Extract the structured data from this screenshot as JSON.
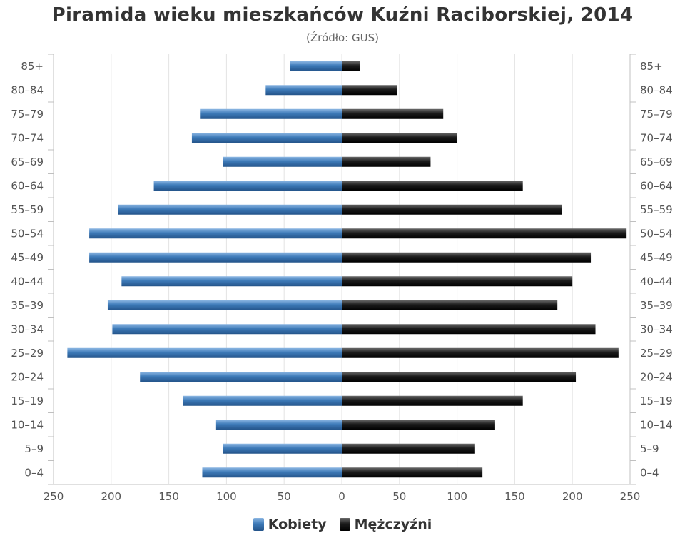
{
  "chart_data": {
    "type": "bar",
    "orientation": "horizontal-population-pyramid",
    "title": "Piramida wieku mieszkańców Kuźni Raciborskiej, 2014",
    "subtitle": "(Źródło: GUS)",
    "categories": [
      "0–4",
      "5–9",
      "10–14",
      "15–19",
      "20–24",
      "25–29",
      "30–34",
      "35–39",
      "40–44",
      "45–49",
      "50–54",
      "55–59",
      "60–64",
      "65–69",
      "70–74",
      "75–79",
      "80–84",
      "85+"
    ],
    "series": [
      {
        "name": "Kobiety",
        "color": "#3d7ab8",
        "side": "left",
        "values": [
          121,
          103,
          109,
          138,
          175,
          238,
          199,
          203,
          191,
          219,
          219,
          194,
          163,
          103,
          130,
          123,
          66,
          45
        ]
      },
      {
        "name": "Mężczyźni",
        "color": "#111111",
        "side": "right",
        "values": [
          122,
          115,
          133,
          157,
          203,
          240,
          220,
          187,
          200,
          216,
          247,
          191,
          157,
          77,
          100,
          88,
          48,
          16
        ]
      }
    ],
    "xlim": [
      -250,
      250
    ],
    "x_ticks": [
      "250",
      "200",
      "150",
      "100",
      "50",
      "0",
      "50",
      "100",
      "150",
      "200",
      "250"
    ],
    "grid": true,
    "legend_position": "bottom-center"
  }
}
